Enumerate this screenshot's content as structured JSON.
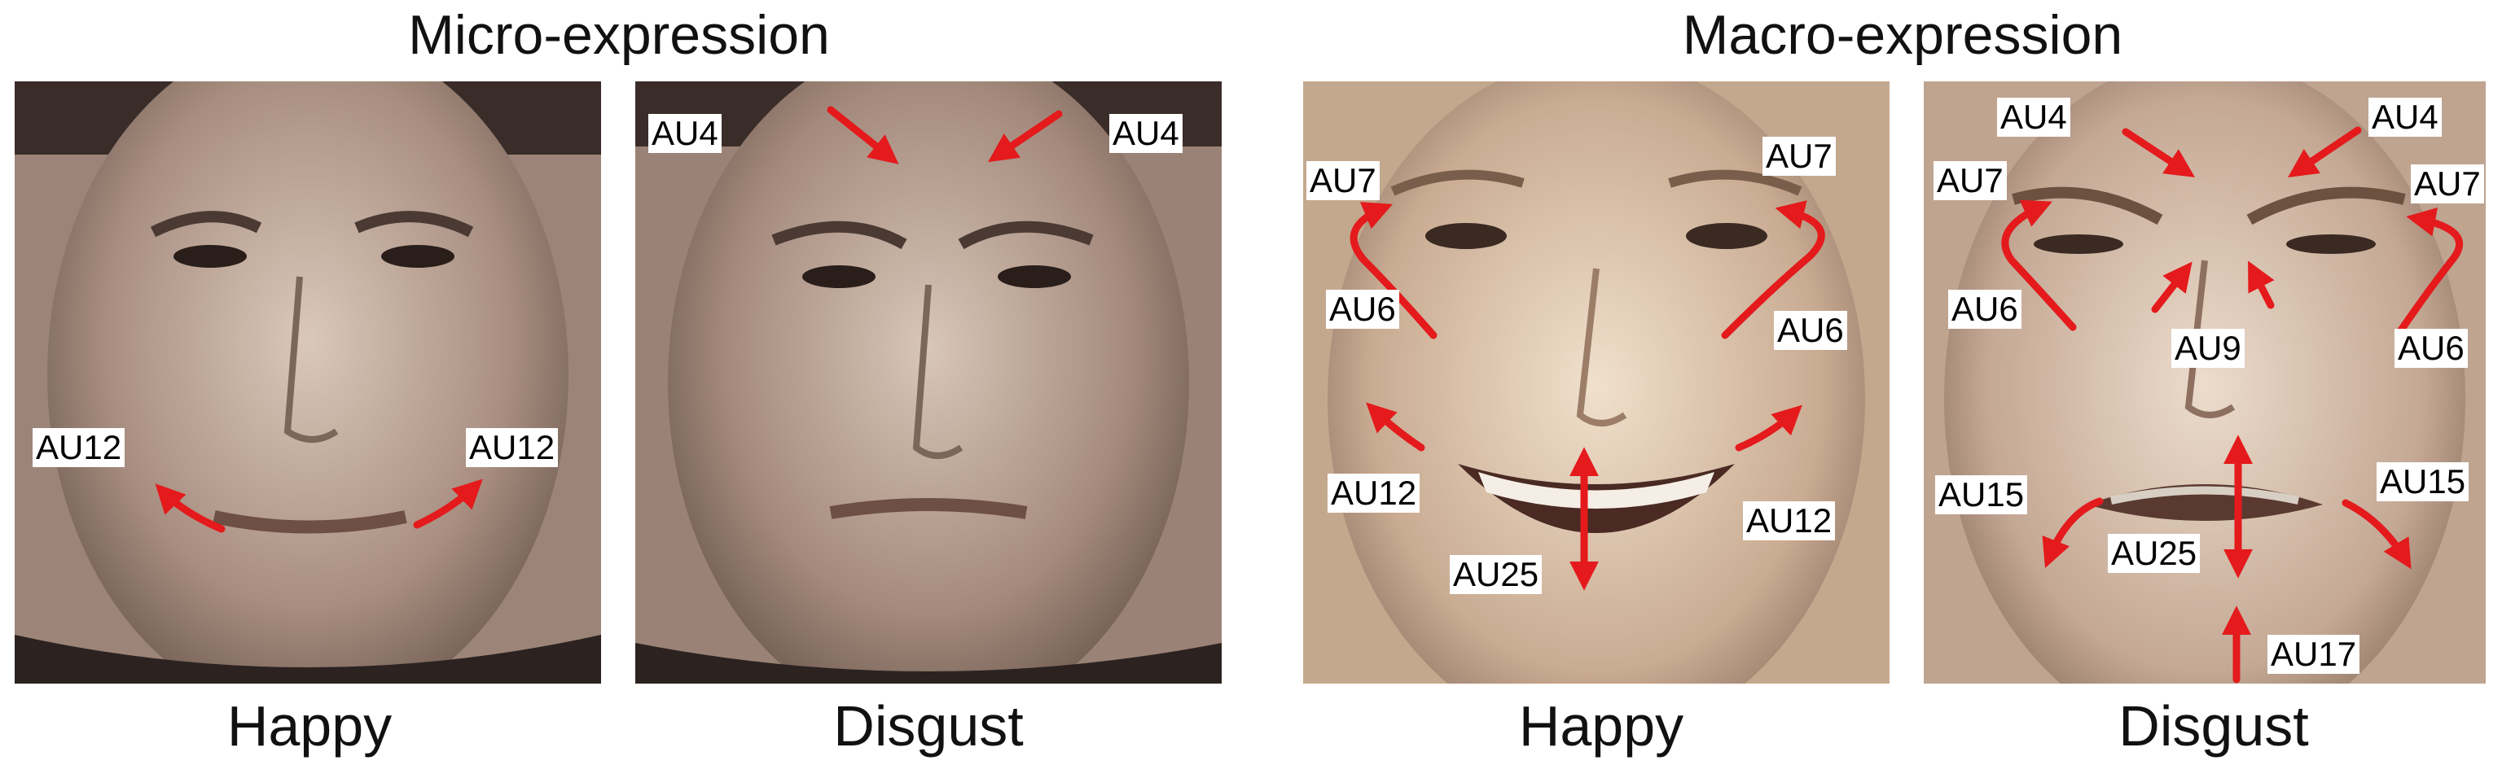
{
  "groups": [
    {
      "title": "Micro-expression"
    },
    {
      "title": "Macro-expression"
    }
  ],
  "panels": [
    {
      "caption": "Happy"
    },
    {
      "caption": "Disgust"
    },
    {
      "caption": "Happy"
    },
    {
      "caption": "Disgust"
    }
  ],
  "labels": {
    "p1": [
      "AU12",
      "AU12"
    ],
    "p2": [
      "AU4",
      "AU4"
    ],
    "p3": [
      "AU7",
      "AU7",
      "AU6",
      "AU6",
      "AU12",
      "AU12",
      "AU25"
    ],
    "p4": [
      "AU4",
      "AU4",
      "AU7",
      "AU7",
      "AU6",
      "AU9",
      "AU6",
      "AU15",
      "AU15",
      "AU25",
      "AU17"
    ]
  },
  "colors": {
    "arrow": "#e41a1c",
    "micro_skin": "#b39a8c",
    "macro_skin": "#cfb49e"
  }
}
